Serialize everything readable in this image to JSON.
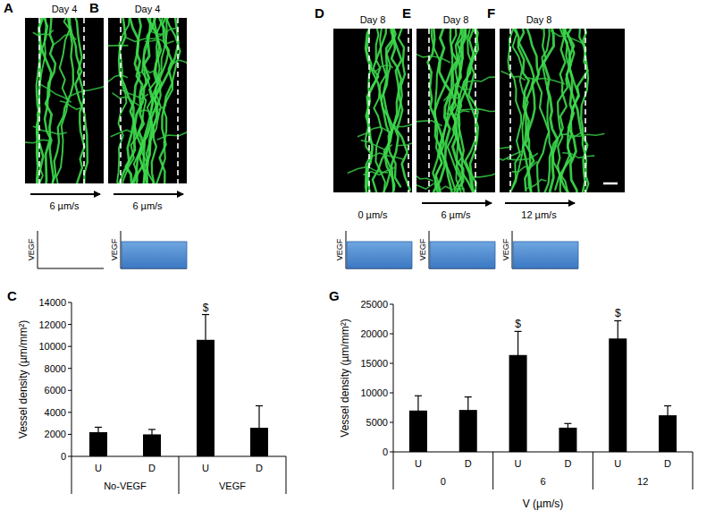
{
  "chart_data": [
    {
      "type": "bar",
      "panel": "C",
      "categories": [
        "U",
        "D",
        "U",
        "D"
      ],
      "groups": [
        "No-VEGF",
        "VEGF"
      ],
      "values": [
        2200,
        2000,
        10600,
        2600
      ],
      "errors": [
        450,
        450,
        2300,
        2000
      ],
      "annotations": [
        null,
        null,
        "$",
        null
      ],
      "ylabel": "Vessel density (µm/mm²)",
      "ylim": [
        0,
        14000
      ],
      "yticks": [
        0,
        2000,
        4000,
        6000,
        8000,
        10000,
        12000,
        14000
      ],
      "color": "#000000"
    },
    {
      "type": "bar",
      "panel": "G",
      "categories": [
        "U",
        "D",
        "U",
        "D",
        "U",
        "D"
      ],
      "groups": [
        "0",
        "6",
        "12"
      ],
      "values": [
        7000,
        7100,
        16400,
        4100,
        19200,
        6200
      ],
      "errors": [
        2500,
        2200,
        4000,
        700,
        3000,
        1600
      ],
      "annotations": [
        null,
        null,
        "$",
        null,
        "$",
        null
      ],
      "ylabel": "Vessel density (µm/mm²)",
      "xlabel": "V (µm/s)",
      "ylim": [
        0,
        25000
      ],
      "yticks": [
        0,
        5000,
        10000,
        15000,
        20000,
        25000
      ],
      "color": "#000000"
    }
  ],
  "images": [
    {
      "label": "A",
      "title": "Day 4",
      "flow": "6 µm/s",
      "arrow": true,
      "vegf_label": "VEGF",
      "vegf": false
    },
    {
      "label": "B",
      "title": "Day 4",
      "flow": "6 µm/s",
      "arrow": true,
      "vegf_label": "VEGF",
      "vegf": true
    },
    {
      "label": "D",
      "title": "Day 8",
      "flow": "0 µm/s",
      "arrow": false,
      "vegf_label": "VEGF",
      "vegf": true
    },
    {
      "label": "E",
      "title": "Day 8",
      "flow": "6 µm/s",
      "arrow": true,
      "vegf_label": "VEGF",
      "vegf": true
    },
    {
      "label": "F",
      "title": "Day 8",
      "flow": "12 µm/s",
      "arrow": true,
      "vegf_label": "VEGF",
      "vegf": true,
      "scale_bar": true
    }
  ]
}
